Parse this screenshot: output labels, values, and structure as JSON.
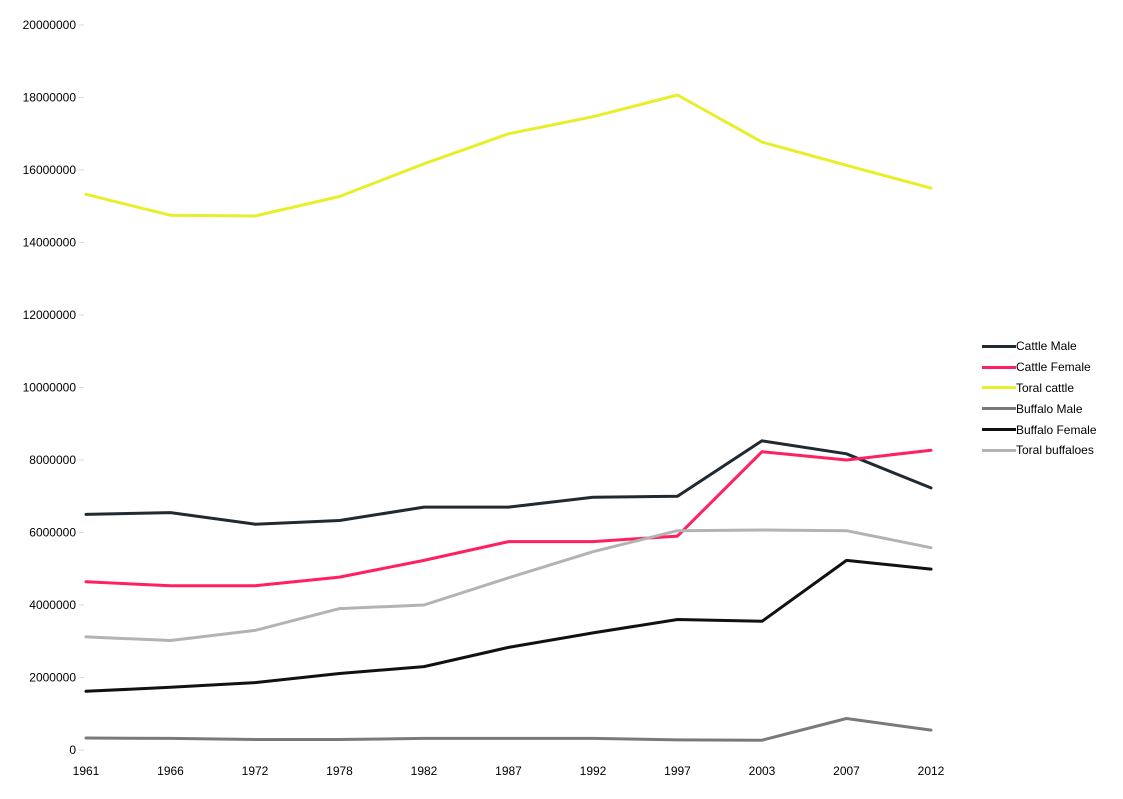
{
  "chart_data": {
    "type": "line",
    "title": "",
    "xlabel": "",
    "ylabel": "",
    "categories": [
      "1961",
      "1966",
      "1972",
      "1978",
      "1982",
      "1987",
      "1992",
      "1997",
      "2003",
      "2007",
      "2012"
    ],
    "y_ticks": [
      "0",
      "2000000",
      "4000000",
      "6000000",
      "8000000",
      "10000000",
      "12000000",
      "14000000",
      "16000000",
      "18000000",
      "20000000"
    ],
    "ylim": [
      0,
      20000000
    ],
    "grid": false,
    "legend_position": "right",
    "series": [
      {
        "name": "Cattle Male",
        "color": "#1f2a33",
        "values": [
          6500000,
          6550000,
          6230000,
          6330000,
          6700000,
          6700000,
          6970000,
          7000000,
          8530000,
          8170000,
          7230000
        ]
      },
      {
        "name": "Cattle Female",
        "color": "#ff2060",
        "values": [
          4640000,
          4530000,
          4530000,
          4770000,
          5230000,
          5750000,
          5750000,
          5900000,
          8230000,
          8000000,
          8270000
        ]
      },
      {
        "name": "Toral cattle",
        "color": "#e8ee2a",
        "values": [
          15330000,
          14750000,
          14730000,
          15270000,
          16170000,
          17000000,
          17470000,
          18070000,
          16770000,
          16130000,
          15500000
        ]
      },
      {
        "name": "Buffalo Male",
        "color": "#7a7a7a",
        "values": [
          330000,
          320000,
          290000,
          290000,
          320000,
          320000,
          320000,
          280000,
          270000,
          870000,
          550000
        ]
      },
      {
        "name": "Buffalo Female",
        "color": "#111111",
        "values": [
          1620000,
          1730000,
          1860000,
          2110000,
          2300000,
          2830000,
          3230000,
          3600000,
          3550000,
          5230000,
          4990000
        ]
      },
      {
        "name": "Toral buffaloes",
        "color": "#b3b3b3",
        "values": [
          3120000,
          3020000,
          3300000,
          3900000,
          4000000,
          4750000,
          5470000,
          6050000,
          6070000,
          6050000,
          5580000
        ]
      }
    ]
  }
}
